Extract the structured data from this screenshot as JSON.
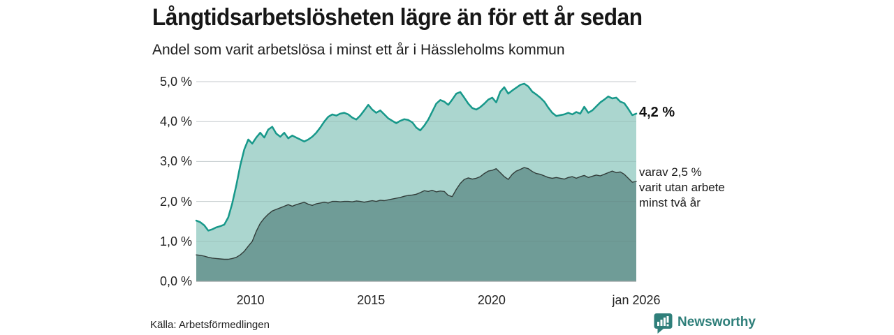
{
  "header": {
    "title": "Långtidsarbetslösheten lägre än för ett år sedan",
    "subtitle": "Andel som varit arbetslösa i minst ett år i Hässleholms kommun"
  },
  "chart_data": {
    "type": "area",
    "unit": "%",
    "grid": true,
    "ylim": [
      0,
      5
    ],
    "x_start_year": 2007.75,
    "x_end_year": 2026.0,
    "x_ticks": [
      {
        "label": "2010",
        "year": 2010
      },
      {
        "label": "2015",
        "year": 2015
      },
      {
        "label": "2020",
        "year": 2020
      },
      {
        "label": "jan 2026",
        "year": 2026
      }
    ],
    "y_ticks": [
      {
        "label": "0,0 %",
        "value": 0
      },
      {
        "label": "1,0 %",
        "value": 1
      },
      {
        "label": "2,0 %",
        "value": 2
      },
      {
        "label": "3,0 %",
        "value": 3
      },
      {
        "label": "4,0 %",
        "value": 4
      },
      {
        "label": "5,0 %",
        "value": 5
      }
    ],
    "colors": {
      "line_total": "#17988a",
      "fill_total": "#abd6cf",
      "line_two_years": "#323d3a",
      "fill_two_years": "#6f9c97",
      "gridline": "#d9dde0",
      "baseline": "#98a0a0"
    },
    "series": [
      {
        "id": "minst-ett-ar",
        "last_value": 4.2,
        "values": [
          1.52,
          1.48,
          1.4,
          1.27,
          1.3,
          1.35,
          1.38,
          1.42,
          1.6,
          1.95,
          2.4,
          2.9,
          3.3,
          3.55,
          3.45,
          3.6,
          3.72,
          3.6,
          3.8,
          3.87,
          3.7,
          3.62,
          3.72,
          3.58,
          3.65,
          3.6,
          3.55,
          3.5,
          3.55,
          3.62,
          3.72,
          3.85,
          4.0,
          4.12,
          4.18,
          4.15,
          4.2,
          4.22,
          4.18,
          4.1,
          4.05,
          4.15,
          4.28,
          4.42,
          4.3,
          4.22,
          4.28,
          4.18,
          4.08,
          4.02,
          3.96,
          4.02,
          4.06,
          4.04,
          3.98,
          3.85,
          3.78,
          3.9,
          4.05,
          4.25,
          4.45,
          4.54,
          4.5,
          4.42,
          4.55,
          4.7,
          4.74,
          4.6,
          4.45,
          4.34,
          4.3,
          4.36,
          4.45,
          4.55,
          4.6,
          4.48,
          4.75,
          4.86,
          4.7,
          4.78,
          4.85,
          4.92,
          4.95,
          4.88,
          4.75,
          4.68,
          4.6,
          4.5,
          4.35,
          4.22,
          4.14,
          4.16,
          4.18,
          4.22,
          4.18,
          4.24,
          4.2,
          4.37,
          4.22,
          4.28,
          4.38,
          4.48,
          4.55,
          4.63,
          4.58,
          4.6,
          4.5,
          4.46,
          4.32,
          4.16,
          4.2
        ]
      },
      {
        "id": "minst-tva-ar",
        "last_value": 2.5,
        "values": [
          0.66,
          0.65,
          0.63,
          0.6,
          0.58,
          0.57,
          0.56,
          0.55,
          0.55,
          0.57,
          0.6,
          0.66,
          0.75,
          0.88,
          1.0,
          1.25,
          1.45,
          1.58,
          1.68,
          1.76,
          1.8,
          1.84,
          1.88,
          1.92,
          1.88,
          1.92,
          1.95,
          1.98,
          1.93,
          1.9,
          1.94,
          1.96,
          1.98,
          1.96,
          2.0,
          2.0,
          1.99,
          2.0,
          2.0,
          1.99,
          2.01,
          2.0,
          1.98,
          2.0,
          2.02,
          2.0,
          2.03,
          2.02,
          2.04,
          2.06,
          2.08,
          2.1,
          2.13,
          2.15,
          2.16,
          2.18,
          2.22,
          2.27,
          2.25,
          2.28,
          2.24,
          2.26,
          2.25,
          2.15,
          2.12,
          2.3,
          2.45,
          2.55,
          2.59,
          2.56,
          2.58,
          2.62,
          2.7,
          2.76,
          2.78,
          2.82,
          2.72,
          2.62,
          2.55,
          2.68,
          2.76,
          2.8,
          2.85,
          2.82,
          2.75,
          2.7,
          2.68,
          2.64,
          2.6,
          2.58,
          2.6,
          2.58,
          2.56,
          2.6,
          2.62,
          2.58,
          2.62,
          2.65,
          2.6,
          2.63,
          2.66,
          2.64,
          2.68,
          2.72,
          2.76,
          2.72,
          2.74,
          2.68,
          2.58,
          2.48,
          2.5
        ]
      }
    ],
    "annotations": {
      "last_value_label": "4,2 %",
      "secondary_lines": [
        "varav 2,5 %",
        "varit utan arbete",
        "minst två år"
      ]
    }
  },
  "footer": {
    "source": "Källa: Arbetsförmedlingen",
    "logo_text": "Newsworthy"
  }
}
